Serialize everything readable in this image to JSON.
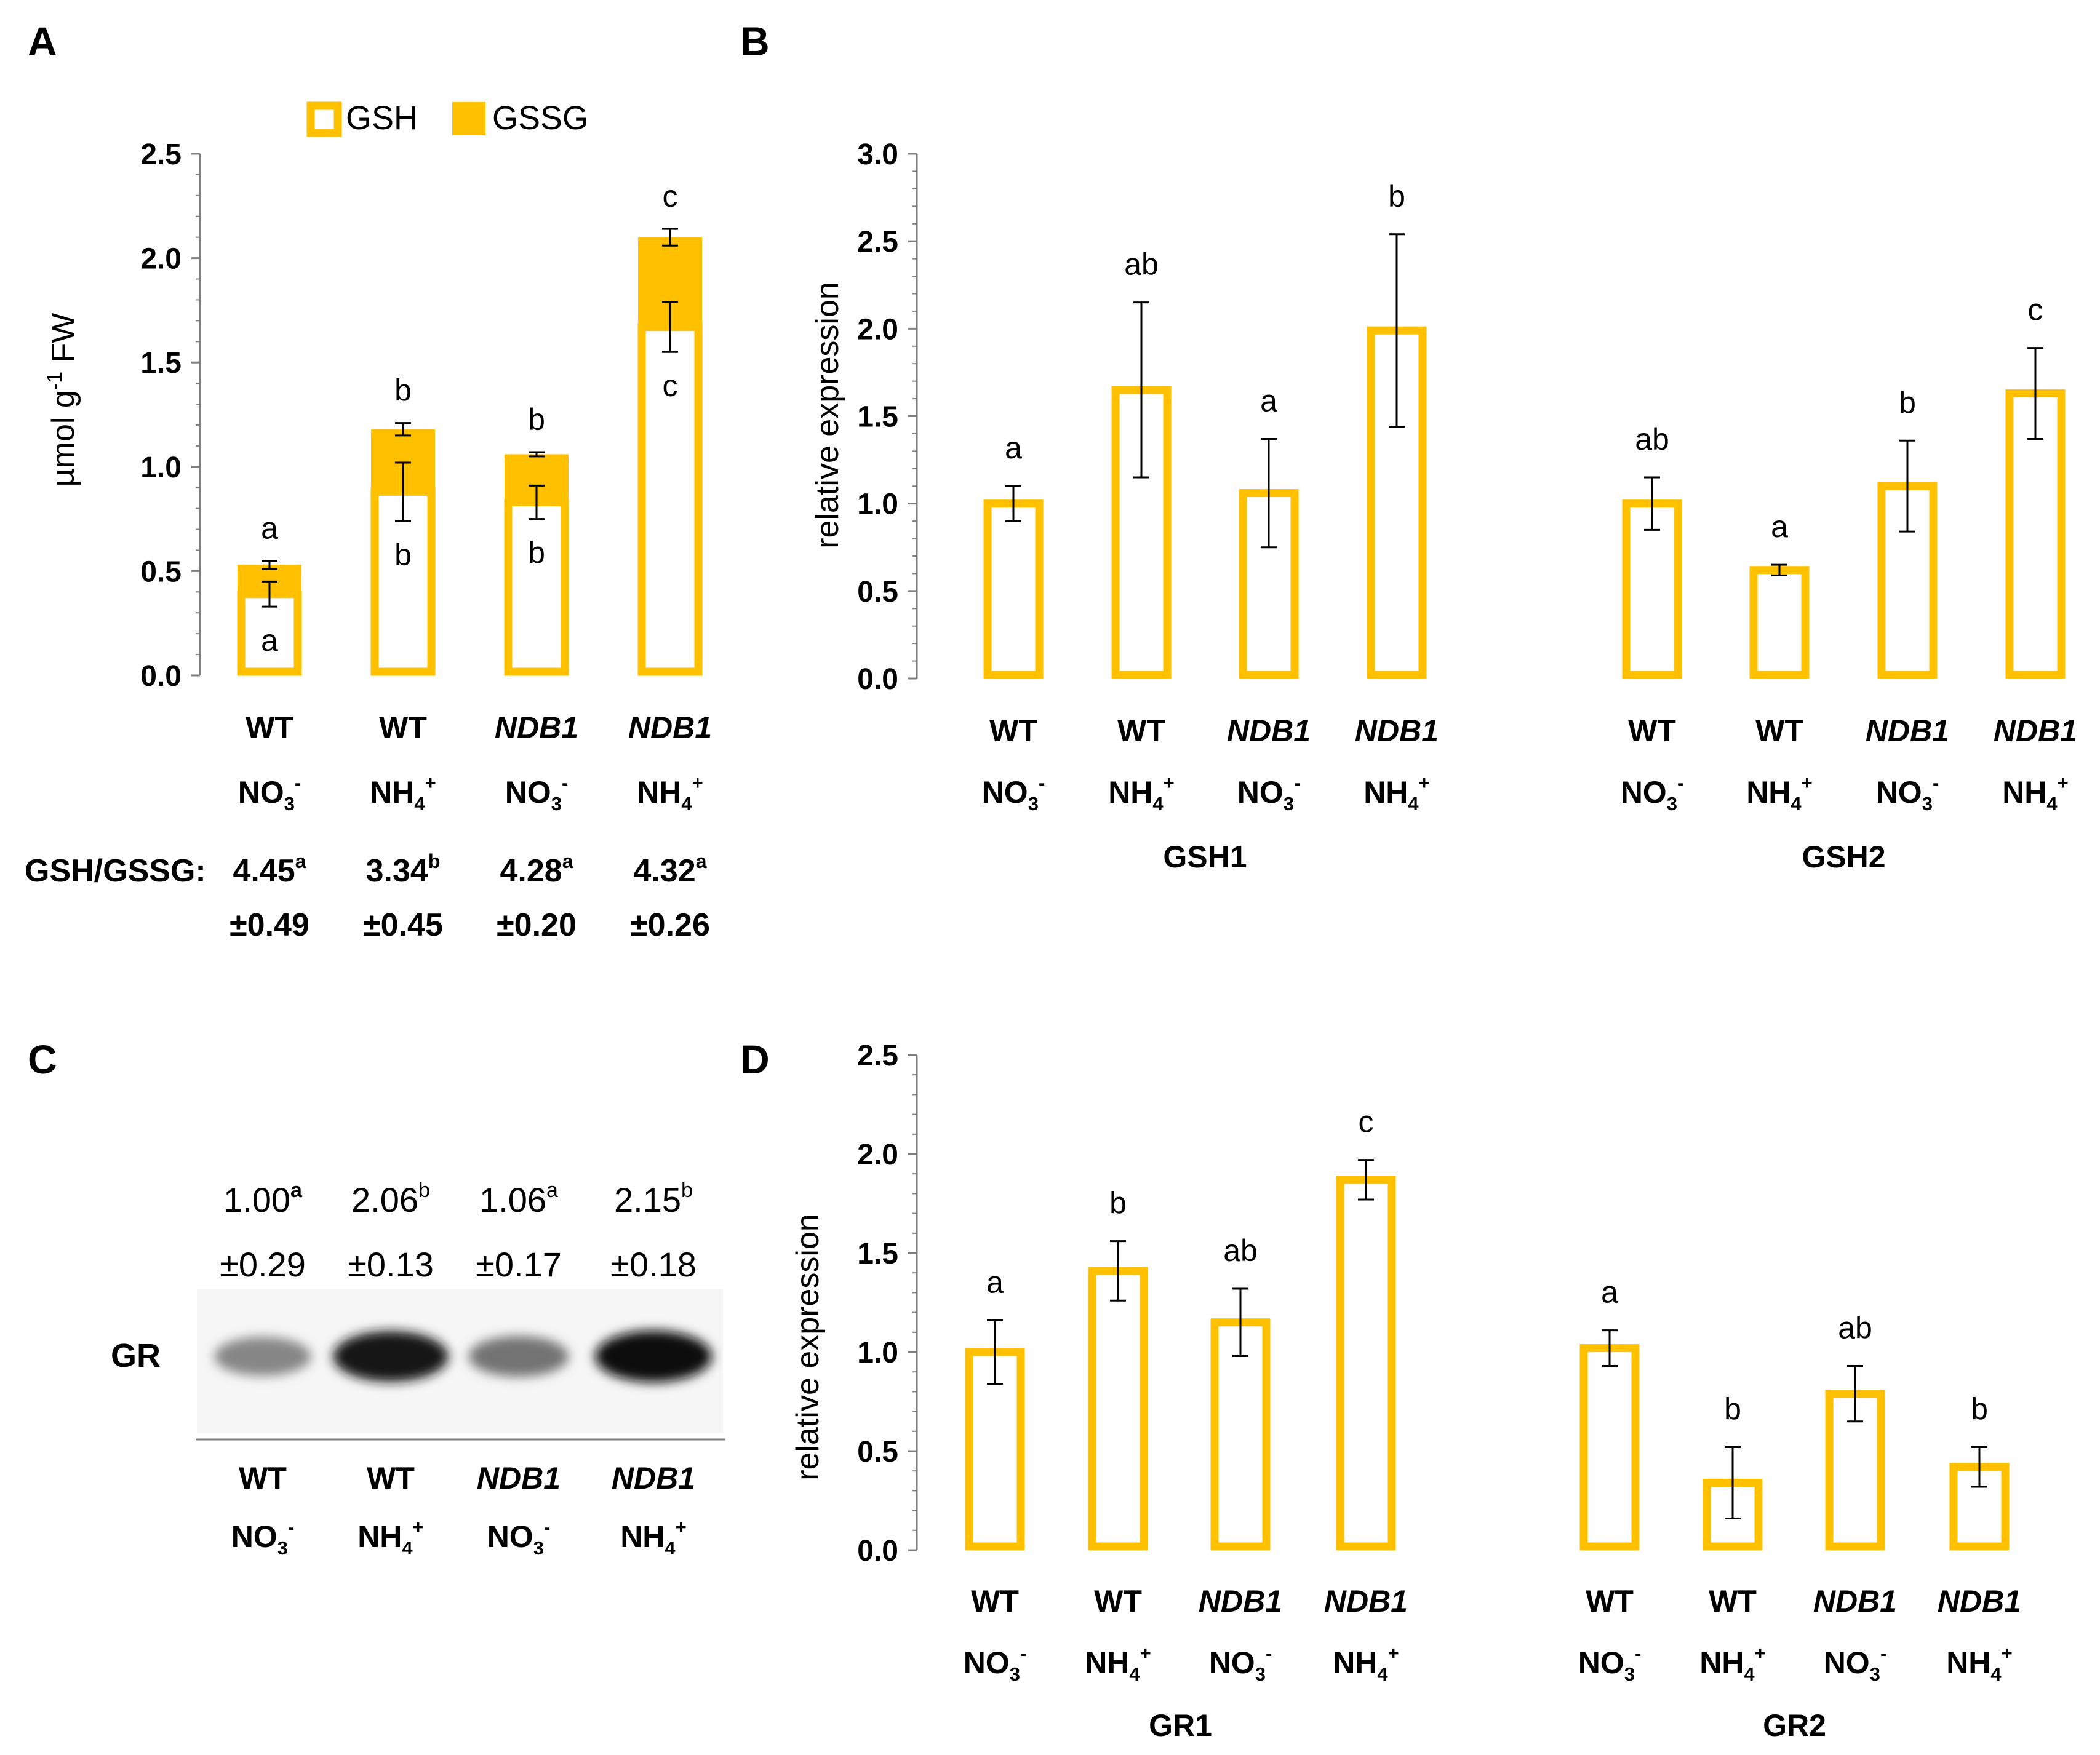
{
  "colors": {
    "bar": "#FFC000",
    "axis": "#7f7f7f",
    "text": "#000000"
  },
  "groups": [
    {
      "genotype": "WT",
      "genotype_italic": false,
      "ion": "NO",
      "ion_sub": "3",
      "ion_sup": "-"
    },
    {
      "genotype": "WT",
      "genotype_italic": false,
      "ion": "NH",
      "ion_sub": "4",
      "ion_sup": "+"
    },
    {
      "genotype": "NDB1",
      "genotype_italic": true,
      "ion": "NO",
      "ion_sub": "3",
      "ion_sup": "-"
    },
    {
      "genotype": "NDB1",
      "genotype_italic": true,
      "ion": "NH",
      "ion_sub": "4",
      "ion_sup": "+"
    }
  ],
  "panels": {
    "A": {
      "letter": "A"
    },
    "B": {
      "letter": "B"
    },
    "C": {
      "letter": "C"
    },
    "D": {
      "letter": "D"
    }
  },
  "ratio": {
    "label": "GSH/GSSG:",
    "values": [
      {
        "mean": "4.45",
        "sd": "±0.49",
        "sig": "a"
      },
      {
        "mean": "3.34",
        "sd": "±0.45",
        "sig": "b"
      },
      {
        "mean": "4.28",
        "sd": "±0.20",
        "sig": "a"
      },
      {
        "mean": "4.32",
        "sd": "±0.26",
        "sig": "a"
      }
    ]
  },
  "blot": {
    "label": "GR",
    "values": [
      {
        "mean": "1.00",
        "sd": "±0.29",
        "sig": "a"
      },
      {
        "mean": "2.06",
        "sd": "±0.13",
        "sig": "b"
      },
      {
        "mean": "1.06",
        "sd": "±0.17",
        "sig": "a"
      },
      {
        "mean": "2.15",
        "sd": "±0.18",
        "sig": "b"
      }
    ],
    "intensity": [
      0.35,
      0.95,
      0.45,
      1.0
    ]
  },
  "chart_data": [
    {
      "id": "A",
      "type": "bar",
      "stacked": true,
      "ylabel": "µmol g-1 FW",
      "ylim": [
        0,
        2.5
      ],
      "yticks": [
        "0.0",
        "0.5",
        "1.0",
        "1.5",
        "2.0",
        "2.5"
      ],
      "legend": [
        "GSH",
        "GSSG"
      ],
      "series": [
        {
          "name": "GSH",
          "values": [
            0.39,
            0.88,
            0.83,
            1.67
          ],
          "errors": [
            0.06,
            0.14,
            0.08,
            0.12
          ],
          "labels": [
            "a",
            "b",
            "b",
            "c"
          ]
        },
        {
          "name": "GSSG",
          "values": [
            0.14,
            0.3,
            0.23,
            0.43
          ],
          "errors": [
            0.02,
            0.03,
            0.01,
            0.04
          ],
          "labels": [
            "a",
            "b",
            "b",
            "c"
          ]
        }
      ]
    },
    {
      "id": "B",
      "type": "bar",
      "ylabel": "relative expression",
      "ylim": [
        0,
        3.0
      ],
      "yticks": [
        "0.0",
        "0.5",
        "1.0",
        "1.5",
        "2.0",
        "2.5",
        "3.0"
      ],
      "genes": [
        {
          "name": "GSH1",
          "values": [
            1.0,
            1.65,
            1.06,
            1.99
          ],
          "errors": [
            0.1,
            0.5,
            0.31,
            0.55
          ],
          "labels": [
            "a",
            "ab",
            "a",
            "b"
          ]
        },
        {
          "name": "GSH2",
          "values": [
            1.0,
            0.62,
            1.1,
            1.63
          ],
          "errors": [
            0.15,
            0.03,
            0.26,
            0.26
          ],
          "labels": [
            "ab",
            "a",
            "b",
            "c"
          ]
        }
      ]
    },
    {
      "id": "D",
      "type": "bar",
      "ylabel": "relative expression",
      "ylim": [
        0,
        2.5
      ],
      "yticks": [
        "0.0",
        "0.5",
        "1.0",
        "1.5",
        "2.0",
        "2.5"
      ],
      "genes": [
        {
          "name": "GR1",
          "values": [
            1.0,
            1.41,
            1.15,
            1.87
          ],
          "errors": [
            0.16,
            0.15,
            0.17,
            0.1
          ],
          "labels": [
            "a",
            "b",
            "ab",
            "c"
          ]
        },
        {
          "name": "GR2",
          "values": [
            1.02,
            0.34,
            0.79,
            0.42
          ],
          "errors": [
            0.09,
            0.18,
            0.14,
            0.1
          ],
          "labels": [
            "a",
            "b",
            "ab",
            "b"
          ]
        }
      ]
    }
  ]
}
